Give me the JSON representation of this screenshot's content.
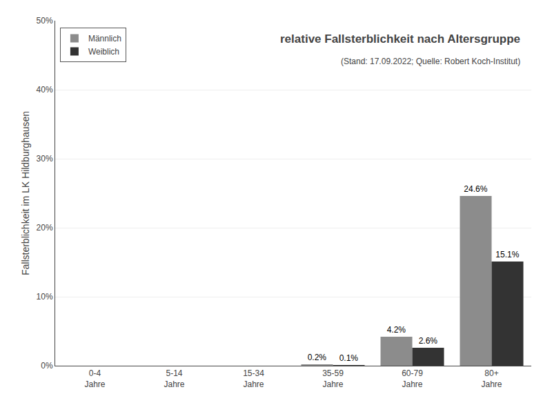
{
  "chart_data": {
    "type": "bar",
    "title": "relative Fallsterblichkeit nach Altersgruppe",
    "subtitle": "(Stand: 17.09.2022; Quelle: Robert Koch-Institut)",
    "ylabel": "Fallsterblichkeit im LK Hildburghausen",
    "categories": [
      "0-4\nJahre",
      "5-14\nJahre",
      "15-34\nJahre",
      "35-59\nJahre",
      "60-79\nJahre",
      "80+\nJahre"
    ],
    "series": [
      {
        "name": "Männlich",
        "color": "#8c8c8c",
        "values": [
          0.0,
          0.0,
          0.0,
          0.2,
          4.2,
          24.6
        ],
        "value_labels": [
          null,
          null,
          null,
          "0.2%",
          "4.2%",
          "24.6%"
        ]
      },
      {
        "name": "Weiblich",
        "color": "#333333",
        "values": [
          0.0,
          0.0,
          0.0,
          0.1,
          2.6,
          15.1
        ],
        "value_labels": [
          null,
          null,
          null,
          "0.1%",
          "2.6%",
          "15.1%"
        ]
      }
    ],
    "ylim": [
      0,
      50
    ],
    "yticks": [
      {
        "value": 0,
        "label": "0%"
      },
      {
        "value": 10,
        "label": "10%"
      },
      {
        "value": 20,
        "label": "20%"
      },
      {
        "value": 30,
        "label": "30%"
      },
      {
        "value": 40,
        "label": "40%"
      },
      {
        "value": 50,
        "label": "50%"
      }
    ],
    "grid": true,
    "legend": "upper left",
    "data_labels": true
  }
}
